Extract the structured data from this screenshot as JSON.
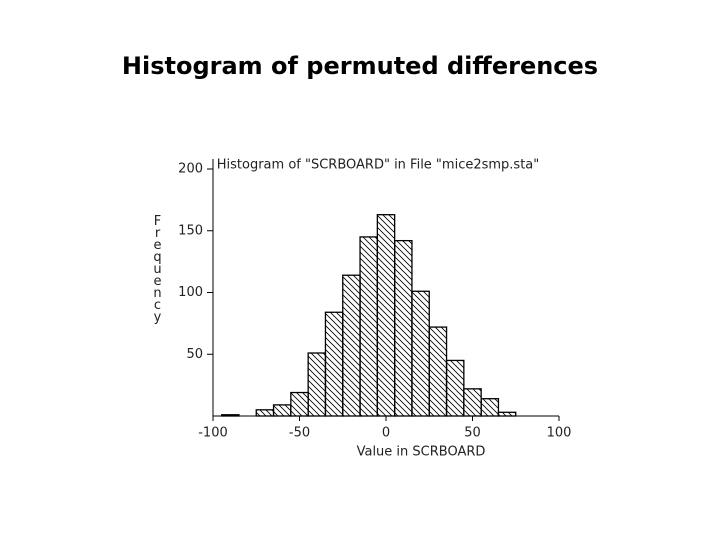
{
  "title": "Histogram of permuted differences",
  "chart_data": {
    "type": "histogram",
    "title": "Histogram of \"SCRBOARD\" in File \"mice2smp.sta\"",
    "x_label": "Value in SCRBOARD",
    "y_label": "Frequency",
    "bins": [
      -95,
      -85,
      -75,
      -65,
      -55,
      -45,
      -35,
      -25,
      -15,
      -5,
      5,
      15,
      25,
      35,
      45,
      55,
      65,
      75
    ],
    "values": [
      1,
      0,
      5,
      9,
      19,
      51,
      84,
      114,
      145,
      163,
      142,
      101,
      72,
      45,
      22,
      14,
      3
    ],
    "xlim": [
      -100,
      100
    ],
    "xticks": [
      -100,
      -50,
      0,
      50,
      100
    ],
    "ylim": [
      0,
      200
    ],
    "yticks": [
      50,
      100,
      150,
      200
    ],
    "color": "#000000",
    "hatch": true
  }
}
